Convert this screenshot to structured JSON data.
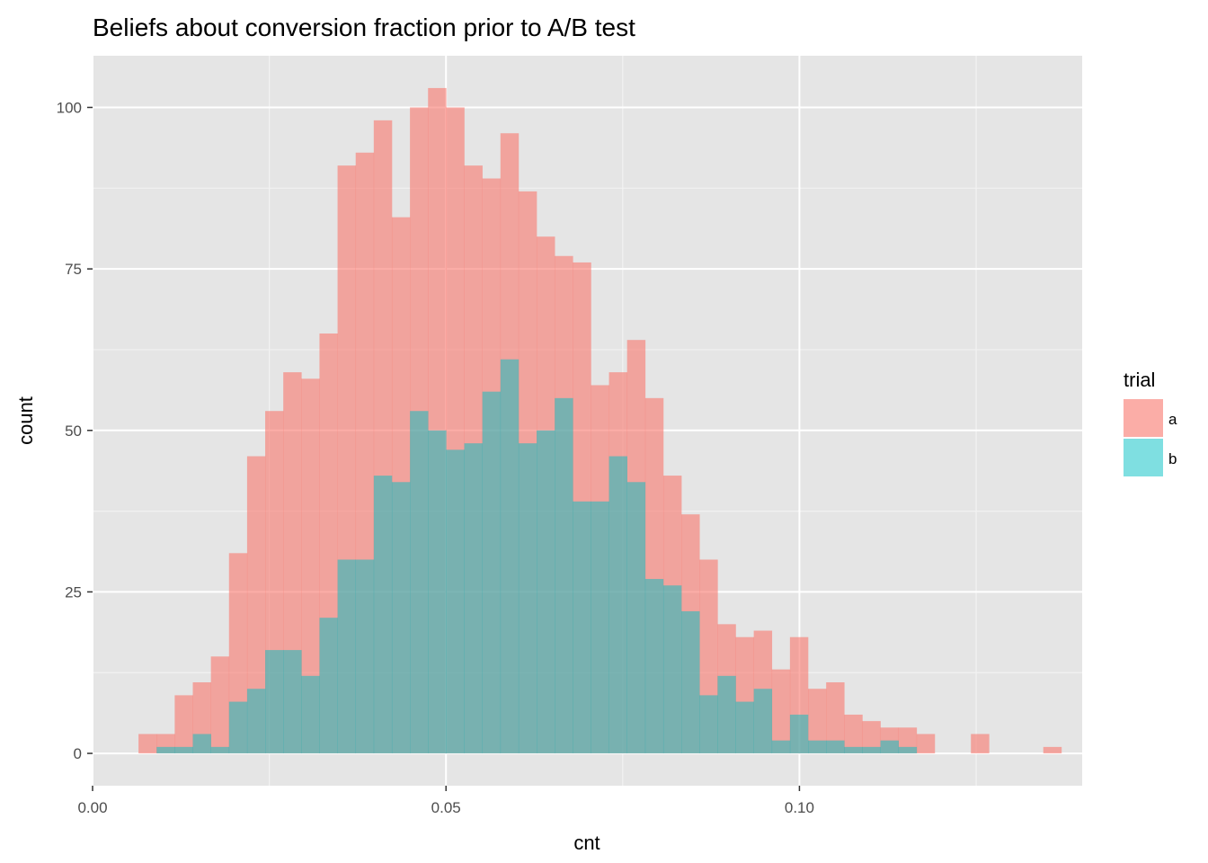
{
  "chart_data": {
    "type": "bar",
    "subtype": "overlaid-histogram",
    "title": "Beliefs about conversion fraction prior to A/B test",
    "xlabel": "cnt",
    "ylabel": "count",
    "xlim": [
      0.0,
      0.14
    ],
    "ylim": [
      -5,
      108
    ],
    "x_ticks": [
      {
        "value": 0.0,
        "label": "0.00"
      },
      {
        "value": 0.05,
        "label": "0.05"
      },
      {
        "value": 0.1,
        "label": "0.10"
      }
    ],
    "y_ticks": [
      {
        "value": 0,
        "label": "0"
      },
      {
        "value": 25,
        "label": "25"
      },
      {
        "value": 50,
        "label": "50"
      },
      {
        "value": 75,
        "label": "75"
      },
      {
        "value": 100,
        "label": "100"
      }
    ],
    "grid": true,
    "bin_start": 0.0065,
    "bin_width": 0.00256,
    "legend": {
      "title": "trial",
      "placement": "right"
    },
    "series": [
      {
        "name": "a",
        "color": "#F8766D",
        "values": [
          3,
          3,
          9,
          11,
          15,
          31,
          46,
          53,
          59,
          58,
          65,
          91,
          93,
          98,
          83,
          100,
          103,
          100,
          91,
          89,
          96,
          87,
          80,
          77,
          76,
          57,
          59,
          64,
          55,
          43,
          37,
          30,
          20,
          18,
          19,
          13,
          18,
          10,
          11,
          6,
          5,
          4,
          4,
          3,
          0,
          0,
          3,
          0,
          0,
          0,
          1
        ]
      },
      {
        "name": "b",
        "color": "#00BFC4",
        "values": [
          0,
          1,
          1,
          3,
          1,
          8,
          10,
          16,
          16,
          12,
          21,
          30,
          30,
          43,
          42,
          53,
          50,
          47,
          48,
          56,
          61,
          48,
          50,
          55,
          39,
          39,
          46,
          42,
          27,
          26,
          22,
          9,
          12,
          8,
          10,
          2,
          6,
          2,
          2,
          1,
          1,
          2,
          1,
          0,
          0,
          0,
          0,
          0,
          0,
          0,
          0
        ]
      }
    ]
  }
}
